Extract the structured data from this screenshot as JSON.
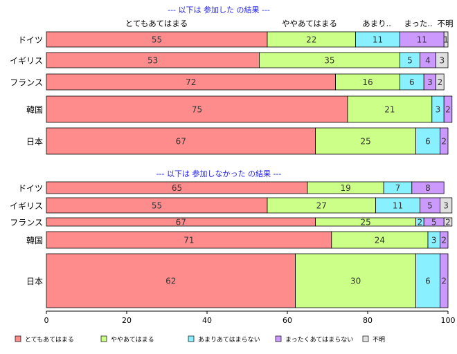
{
  "chart_data": {
    "type": "bar",
    "orientation": "horizontal",
    "stacked": true,
    "xlim": [
      0,
      100
    ],
    "x_ticks": [
      "0",
      "20",
      "40",
      "60",
      "80",
      "100"
    ],
    "grid": false,
    "legend_position": "bottom",
    "series_names": [
      "とてもあてはまる",
      "ややあてはまる",
      "あまりあてはまらない",
      "まったくあてはまらない",
      "不明"
    ],
    "colors": [
      "#ff8c8c",
      "#ccff88",
      "#88f0ff",
      "#cc99ff",
      "#e0e0e0"
    ],
    "column_headers": [
      "とてもあてはまる",
      "ややあてはまる",
      "あまり..",
      "まった..",
      "不明"
    ],
    "panels": [
      {
        "title": "--- 以下は 参加した の結果 ---",
        "categories": [
          "ドイツ",
          "イギリス",
          "フランス",
          "韓国",
          "日本"
        ],
        "values": [
          [
            55,
            22,
            11,
            11,
            1
          ],
          [
            53,
            35,
            5,
            4,
            3
          ],
          [
            72,
            16,
            6,
            3,
            2
          ],
          [
            75,
            21,
            3,
            2,
            0
          ],
          [
            67,
            25,
            6,
            2,
            0
          ]
        ]
      },
      {
        "title": "--- 以下は 参加しなかった の結果 ---",
        "categories": [
          "ドイツ",
          "イギリス",
          "フランス",
          "韓国",
          "日本"
        ],
        "values": [
          [
            65,
            19,
            7,
            8,
            0
          ],
          [
            55,
            27,
            11,
            5,
            3
          ],
          [
            67,
            25,
            2,
            5,
            2
          ],
          [
            71,
            24,
            3,
            2,
            0
          ],
          [
            62,
            30,
            6,
            2,
            0
          ]
        ]
      }
    ]
  }
}
